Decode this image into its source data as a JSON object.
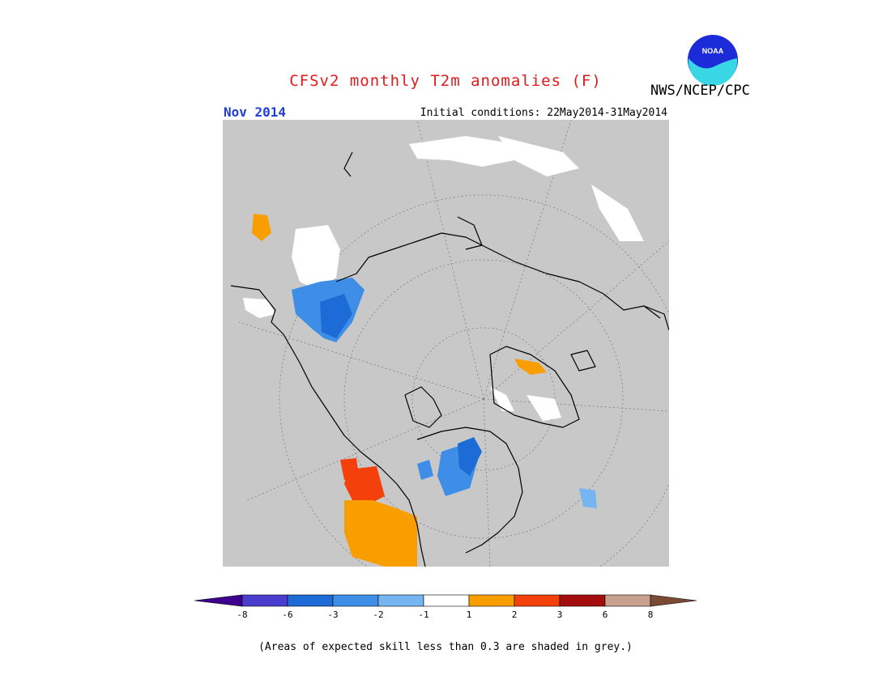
{
  "header": {
    "title": "CFSv2 monthly T2m anomalies (F)",
    "org": "NWS/NCEP/CPC",
    "logo_text": "NOAA",
    "date": "Nov 2014",
    "initial_conditions": "Initial conditions: 22May2014-31May2014"
  },
  "colorbar": {
    "labels": [
      "-8",
      "-6",
      "-3",
      "-2",
      "-1",
      "1",
      "2",
      "3",
      "6",
      "8"
    ],
    "colors": [
      "#3d008f",
      "#4a3ccc",
      "#1d6bd6",
      "#3e8ee8",
      "#74b5f2",
      "#ffffff",
      "#f99e00",
      "#f4410b",
      "#a40d0d",
      "#c8a08f",
      "#7a4a35"
    ]
  },
  "map": {
    "projection": "north-polar-stereographic",
    "background": "#c8c8c8",
    "anomaly_regions": [
      {
        "location": "western Canada / British Columbia",
        "class": "2"
      },
      {
        "location": "northwest Canada",
        "class": "3"
      },
      {
        "location": "western Europe",
        "class": "-2"
      },
      {
        "location": "Hudson Bay region",
        "class": "-3"
      },
      {
        "location": "Greenland",
        "class": "1"
      },
      {
        "location": "Arctic Pacific sector",
        "class": "-1"
      }
    ]
  },
  "footnote": "(Areas of expected skill less than 0.3 are shaded in grey.)"
}
